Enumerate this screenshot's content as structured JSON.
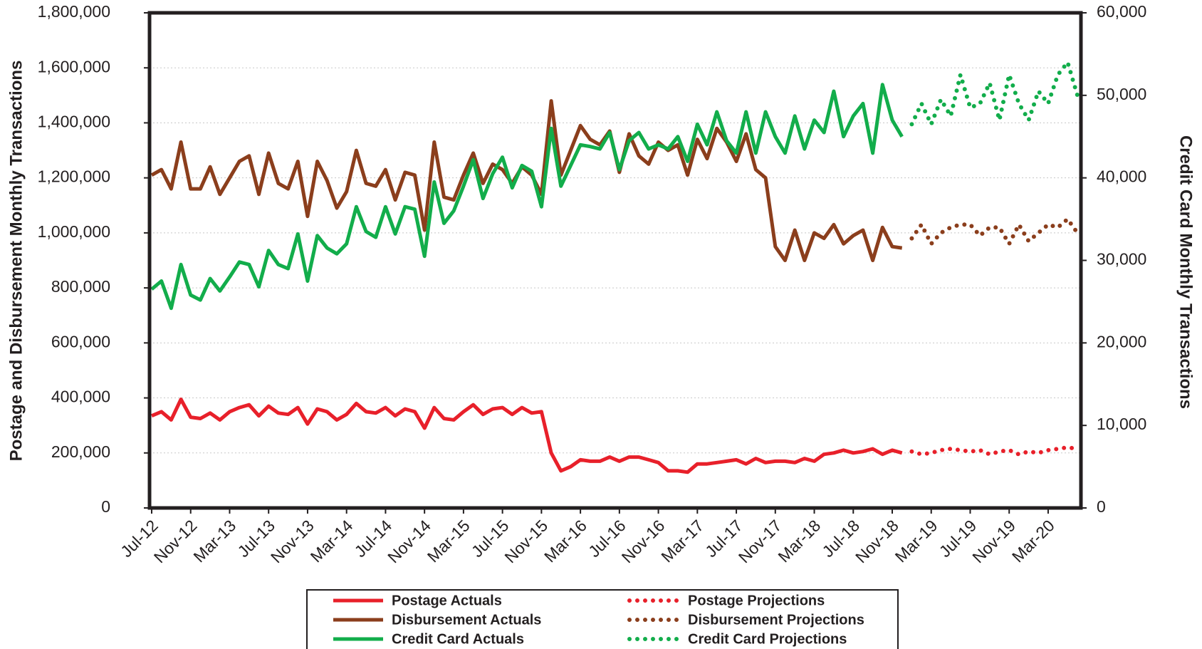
{
  "chart_data": {
    "type": "line",
    "y_label": "Postage and Disbursement Monthly Transactions",
    "y2_label": "Credit Card Monthly Transactions",
    "categories": [
      "Jul-12",
      null,
      null,
      null,
      "Nov-12",
      null,
      null,
      null,
      "Mar-13",
      null,
      null,
      null,
      "Jul-13",
      null,
      null,
      null,
      "Nov-13",
      null,
      null,
      null,
      "Mar-14",
      null,
      null,
      null,
      "Jul-14",
      null,
      null,
      null,
      "Nov-14",
      null,
      null,
      null,
      "Mar-15",
      null,
      null,
      null,
      "Jul-15",
      null,
      null,
      null,
      "Nov-15",
      null,
      null,
      null,
      "Mar-16",
      null,
      null,
      null,
      "Jul-16",
      null,
      null,
      null,
      "Nov-16",
      null,
      null,
      null,
      "Mar-17",
      null,
      null,
      null,
      "Jul-17",
      null,
      null,
      null,
      "Nov-17",
      null,
      null,
      null,
      "Mar-18",
      null,
      null,
      null,
      "Jul-18",
      null,
      null,
      null,
      "Nov-18",
      null,
      null,
      null,
      "Mar-19",
      null,
      null,
      null,
      "Jul-19",
      null,
      null,
      null,
      "Nov-19",
      null,
      null,
      null,
      "Mar-20",
      null,
      null,
      null
    ],
    "ylim": [
      0,
      1800000
    ],
    "yticks": [
      0,
      {
        "value": 200000,
        "label": "200,000"
      },
      {
        "value": 400000,
        "label": "400,000"
      },
      {
        "value": 600000,
        "label": "600,000"
      },
      {
        "value": 800000,
        "label": "800,000"
      },
      {
        "value": 1000000,
        "label": "1,000,000"
      },
      {
        "value": 1200000,
        "label": "1,200,000"
      },
      {
        "value": 1400000,
        "label": "1,400,000"
      },
      {
        "value": 1600000,
        "label": "1,600,000"
      },
      {
        "value": 1800000,
        "label": "1,800,000"
      }
    ],
    "y2lim": [
      0,
      60000
    ],
    "y2ticks": [
      0,
      {
        "value": 10000,
        "label": "10,000"
      },
      {
        "value": 20000,
        "label": "20,000"
      },
      {
        "value": 30000,
        "label": "30,000"
      },
      {
        "value": 40000,
        "label": "40,000"
      },
      {
        "value": 50000,
        "label": "50,000"
      },
      {
        "value": 60000,
        "label": "60,000"
      }
    ],
    "grid": true,
    "legend": "bottom",
    "series": [
      {
        "name": "Postage Actuals",
        "color": "#e8202a",
        "style": "solid",
        "values": [
          335000,
          350000,
          320000,
          395000,
          330000,
          325000,
          345000,
          320000,
          350000,
          365000,
          375000,
          335000,
          370000,
          345000,
          340000,
          365000,
          305000,
          360000,
          350000,
          320000,
          340000,
          380000,
          350000,
          345000,
          365000,
          335000,
          360000,
          350000,
          290000,
          365000,
          325000,
          320000,
          350000,
          375000,
          340000,
          360000,
          365000,
          340000,
          365000,
          345000,
          350000,
          200000,
          135000,
          150000,
          175000,
          170000,
          170000,
          185000,
          170000,
          185000,
          185000,
          175000,
          165000,
          135000,
          135000,
          130000,
          160000,
          160000,
          165000,
          170000,
          175000,
          160000,
          180000,
          165000,
          170000,
          170000,
          165000,
          180000,
          170000,
          195000,
          200000,
          210000,
          200000,
          205000,
          215000,
          195000,
          210000,
          200000,
          null,
          null,
          null,
          null,
          null,
          null,
          null,
          null,
          null,
          null,
          null,
          null,
          null,
          null,
          null,
          null,
          null,
          null
        ]
      },
      {
        "name": "Disbursement Actuals",
        "color": "#8b3e1c",
        "style": "solid",
        "values": [
          1210000,
          1230000,
          1160000,
          1330000,
          1160000,
          1160000,
          1240000,
          1140000,
          1200000,
          1260000,
          1280000,
          1140000,
          1290000,
          1180000,
          1160000,
          1260000,
          1060000,
          1260000,
          1190000,
          1090000,
          1150000,
          1300000,
          1180000,
          1170000,
          1230000,
          1120000,
          1220000,
          1210000,
          1010000,
          1330000,
          1130000,
          1120000,
          1210000,
          1290000,
          1180000,
          1250000,
          1230000,
          1180000,
          1240000,
          1210000,
          1140000,
          1480000,
          1210000,
          1300000,
          1390000,
          1340000,
          1320000,
          1370000,
          1220000,
          1360000,
          1280000,
          1250000,
          1330000,
          1300000,
          1320000,
          1210000,
          1340000,
          1270000,
          1380000,
          1330000,
          1260000,
          1360000,
          1230000,
          1200000,
          950000,
          900000,
          1010000,
          900000,
          1000000,
          980000,
          1030000,
          960000,
          990000,
          1010000,
          900000,
          1020000,
          950000,
          945000,
          null,
          null,
          null,
          null,
          null,
          null,
          null,
          null,
          null,
          null,
          null,
          null,
          null,
          null,
          null,
          null,
          null,
          null
        ]
      },
      {
        "name": "Credit Card Actuals",
        "color": "#12ad4b",
        "style": "solid",
        "axis": "y2",
        "values": [
          26500,
          27500,
          24200,
          29500,
          25800,
          25200,
          27800,
          26300,
          28000,
          29800,
          29500,
          26800,
          31200,
          29500,
          29000,
          33200,
          27500,
          33000,
          31500,
          30800,
          32000,
          36500,
          33500,
          32800,
          36500,
          33200,
          36500,
          36200,
          30500,
          39500,
          34500,
          36000,
          39000,
          42200,
          37500,
          40500,
          42500,
          38800,
          41500,
          40800,
          36500,
          46000,
          39000,
          41500,
          44000,
          43800,
          43500,
          45500,
          41000,
          44500,
          45500,
          43500,
          44000,
          43500,
          45000,
          42000,
          46500,
          44000,
          48000,
          44500,
          43000,
          48000,
          43000,
          48000,
          45000,
          43000,
          47500,
          43500,
          47000,
          45500,
          50500,
          45000,
          47500,
          49000,
          43000,
          51300,
          47000,
          45000,
          null,
          null,
          null,
          null,
          null,
          null,
          null,
          null,
          null,
          null,
          null,
          null,
          null,
          null,
          null,
          null,
          null,
          null
        ]
      },
      {
        "name": "Postage Projections",
        "color": "#e8202a",
        "style": "dotted",
        "values": [
          null,
          null,
          null,
          null,
          null,
          null,
          null,
          null,
          null,
          null,
          null,
          null,
          null,
          null,
          null,
          null,
          null,
          null,
          null,
          null,
          null,
          null,
          null,
          null,
          null,
          null,
          null,
          null,
          null,
          null,
          null,
          null,
          null,
          null,
          null,
          null,
          null,
          null,
          null,
          null,
          null,
          null,
          null,
          null,
          null,
          null,
          null,
          null,
          null,
          null,
          null,
          null,
          null,
          null,
          null,
          null,
          null,
          null,
          null,
          null,
          null,
          null,
          null,
          null,
          null,
          null,
          null,
          null,
          null,
          null,
          null,
          null,
          null,
          null,
          null,
          null,
          null,
          null,
          205000,
          195000,
          200000,
          210000,
          215000,
          210000,
          205000,
          210000,
          195000,
          205000,
          210000,
          195000,
          205000,
          200000,
          210000,
          215000,
          220000,
          215000
        ]
      },
      {
        "name": "Disbursement Projections",
        "color": "#8b3e1c",
        "style": "dotted",
        "values": [
          null,
          null,
          null,
          null,
          null,
          null,
          null,
          null,
          null,
          null,
          null,
          null,
          null,
          null,
          null,
          null,
          null,
          null,
          null,
          null,
          null,
          null,
          null,
          null,
          null,
          null,
          null,
          null,
          null,
          null,
          null,
          null,
          null,
          null,
          null,
          null,
          null,
          null,
          null,
          null,
          null,
          null,
          null,
          null,
          null,
          null,
          null,
          null,
          null,
          null,
          null,
          null,
          null,
          null,
          null,
          null,
          null,
          null,
          null,
          null,
          null,
          null,
          null,
          null,
          null,
          null,
          null,
          null,
          null,
          null,
          null,
          null,
          null,
          null,
          null,
          null,
          null,
          null,
          980000,
          1030000,
          960000,
          1000000,
          1020000,
          1030000,
          1030000,
          990000,
          1020000,
          1020000,
          960000,
          1030000,
          970000,
          1000000,
          1030000,
          1020000,
          1050000,
          1000000
        ]
      },
      {
        "name": "Credit Card Projections",
        "color": "#12ad4b",
        "style": "dotted",
        "axis": "y2",
        "values": [
          null,
          null,
          null,
          null,
          null,
          null,
          null,
          null,
          null,
          null,
          null,
          null,
          null,
          null,
          null,
          null,
          null,
          null,
          null,
          null,
          null,
          null,
          null,
          null,
          null,
          null,
          null,
          null,
          null,
          null,
          null,
          null,
          null,
          null,
          null,
          null,
          null,
          null,
          null,
          null,
          null,
          null,
          null,
          null,
          null,
          null,
          null,
          null,
          null,
          null,
          null,
          null,
          null,
          null,
          null,
          null,
          null,
          null,
          null,
          null,
          null,
          null,
          null,
          null,
          null,
          null,
          null,
          null,
          null,
          null,
          null,
          null,
          null,
          null,
          null,
          null,
          null,
          null,
          46500,
          49000,
          46500,
          49500,
          47500,
          52500,
          48500,
          49000,
          51500,
          47000,
          52500,
          49000,
          47000,
          50500,
          49000,
          52500,
          54000,
          50000
        ]
      }
    ]
  }
}
